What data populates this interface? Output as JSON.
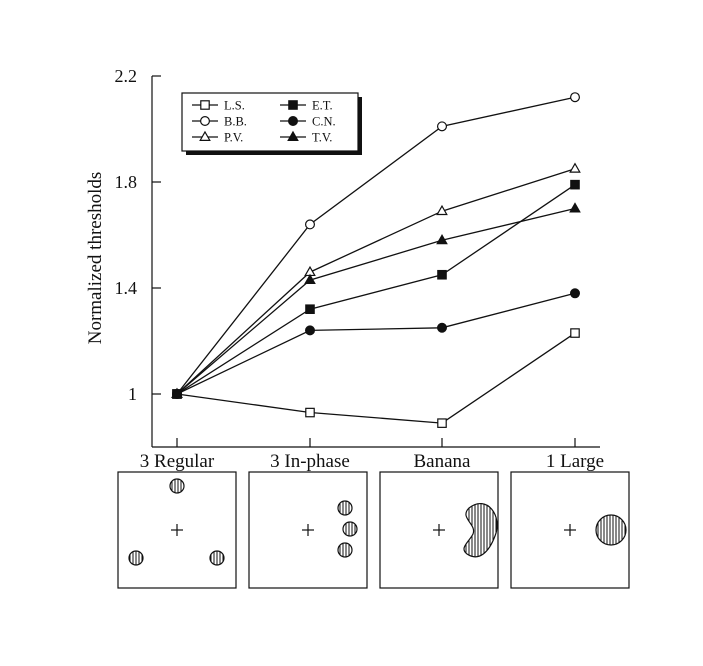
{
  "chart_data": {
    "type": "line",
    "title": "",
    "xlabel": "",
    "ylabel": "Normalized thresholds",
    "categories": [
      "3 Regular",
      "3 In-phase",
      "Banana",
      "1 Large"
    ],
    "ylim": [
      0.82,
      2.2
    ],
    "yticks": [
      1,
      1.4,
      1.8,
      2.2
    ],
    "ytick_labels": [
      "1",
      "1.4",
      "1.8",
      "2.2"
    ],
    "grid": false,
    "legend_position": "top-left",
    "series": [
      {
        "name": "L.S.",
        "marker": "square-open",
        "values": [
          1.0,
          0.93,
          0.89,
          1.23
        ]
      },
      {
        "name": "E.T.",
        "marker": "square-filled",
        "values": [
          1.0,
          1.32,
          1.45,
          1.79
        ]
      },
      {
        "name": "B.B.",
        "marker": "circle-open",
        "values": [
          1.0,
          1.64,
          2.01,
          2.12
        ]
      },
      {
        "name": "C.N.",
        "marker": "circle-filled",
        "values": [
          1.0,
          1.24,
          1.25,
          1.38
        ]
      },
      {
        "name": "P.V.",
        "marker": "triangle-open",
        "values": [
          1.0,
          1.46,
          1.69,
          1.85
        ]
      },
      {
        "name": "T.V.",
        "marker": "triangle-filled",
        "values": [
          1.0,
          1.43,
          1.58,
          1.7
        ]
      }
    ],
    "legend_order": [
      "L.S.",
      "E.T.",
      "B.B.",
      "C.N.",
      "P.V.",
      "T.V."
    ],
    "stimuli": [
      {
        "label": "3 Regular",
        "kind": "three-regular"
      },
      {
        "label": "3 In-phase",
        "kind": "three-in-phase"
      },
      {
        "label": "Banana",
        "kind": "banana"
      },
      {
        "label": "1 Large",
        "kind": "one-large"
      }
    ],
    "colors": {
      "ink": "#111111",
      "background": "#ffffff"
    }
  }
}
